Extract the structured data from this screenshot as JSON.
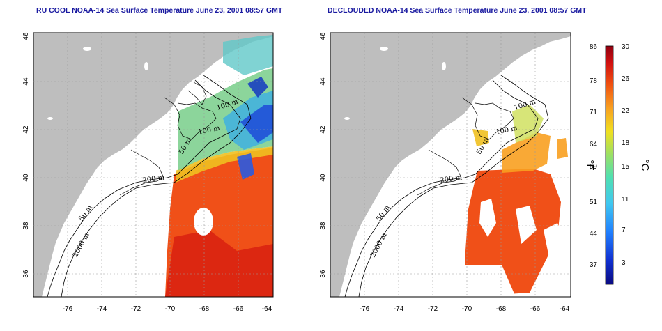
{
  "panels": [
    {
      "id": "left",
      "title": "RU COOL NOAA-14 Sea Surface Temperature June 23, 2001 08:57 GMT"
    },
    {
      "id": "right",
      "title": "DECLOUDED NOAA-14 Sea Surface Temperature June 23, 2001 08:57 GMT"
    }
  ],
  "lon_ticks": [
    "-76",
    "-74",
    "-72",
    "-70",
    "-68",
    "-66",
    "-64"
  ],
  "lat_ticks": [
    "46",
    "44",
    "42",
    "40",
    "38",
    "36"
  ],
  "contour_labels": {
    "left": [
      "100 m",
      "100 m",
      "50 m",
      "200 m",
      "50 m",
      "2000 m"
    ],
    "right": [
      "100 m",
      "100 m",
      "50 m",
      "200 m",
      "50 m",
      "2000 m"
    ]
  },
  "colorbar": {
    "fahrenheit_ticks": [
      "86",
      "78",
      "71",
      "64",
      "59",
      "51",
      "44",
      "37"
    ],
    "celsius_ticks": [
      "30",
      "26",
      "22",
      "18",
      "15",
      "11",
      "7",
      "3"
    ],
    "fahrenheit_unit": "°F",
    "celsius_unit": "°C",
    "colors": [
      "#0a0a80",
      "#1030d0",
      "#2080ff",
      "#40c8f0",
      "#50e0b0",
      "#a0e060",
      "#f0e020",
      "#f8a020",
      "#f05010",
      "#d01010",
      "#900010"
    ]
  },
  "map_colors": {
    "land": "#bebebe",
    "water_background": "#ffffff",
    "warm_sst": "#f05018",
    "cool_sst": "#2060e0"
  }
}
